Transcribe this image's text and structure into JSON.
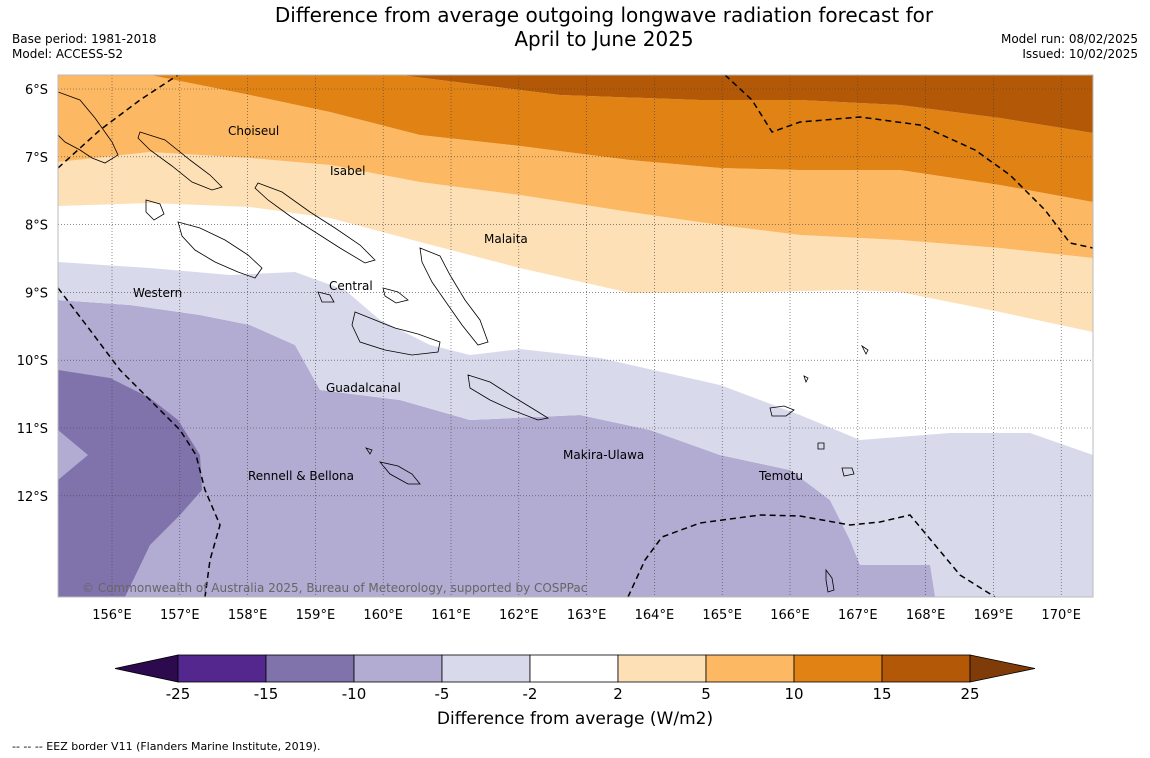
{
  "header": {
    "title_line1": "Difference from average outgoing longwave radiation forecast for",
    "title_line2": "April to June 2025",
    "base_period": "Base period: 1981-2018",
    "model": "Model: ACCESS-S2",
    "model_run": "Model run: 08/02/2025",
    "issued": "Issued: 10/02/2025"
  },
  "map": {
    "lon_labels": [
      "156°E",
      "157°E",
      "158°E",
      "159°E",
      "160°E",
      "161°E",
      "162°E",
      "163°E",
      "164°E",
      "165°E",
      "166°E",
      "167°E",
      "168°E",
      "169°E",
      "170°E"
    ],
    "lat_labels": [
      "6°S",
      "7°S",
      "8°S",
      "9°S",
      "10°S",
      "11°S",
      "12°S"
    ],
    "regions": [
      {
        "name": "Choiseul"
      },
      {
        "name": "Isabel"
      },
      {
        "name": "Malaita"
      },
      {
        "name": "Western"
      },
      {
        "name": "Central"
      },
      {
        "name": "Guadalcanal"
      },
      {
        "name": "Rennell & Bellona"
      },
      {
        "name": "Makira-Ulawa"
      },
      {
        "name": "Temotu"
      }
    ],
    "copyright": "© Commonwealth of Australia 2025, Bureau of Meteorology, supported by COSPPac"
  },
  "colorbar": {
    "ticks": [
      "-25",
      "-15",
      "-10",
      "-5",
      "-2",
      "2",
      "5",
      "10",
      "15",
      "25"
    ],
    "colors": {
      "below_min": "#2d0a4e",
      "bins": [
        "#54278f",
        "#8073ac",
        "#b2abd2",
        "#d8daeb",
        "#ffffff",
        "#fee0b6",
        "#fdb863",
        "#e08214",
        "#b35806"
      ],
      "above_max": "#7f3b08"
    },
    "label": "Difference from average (W/m2)"
  },
  "footer": {
    "legend": "--  --  -- EEZ border V11 (Flanders Marine Institute, 2019)."
  }
}
